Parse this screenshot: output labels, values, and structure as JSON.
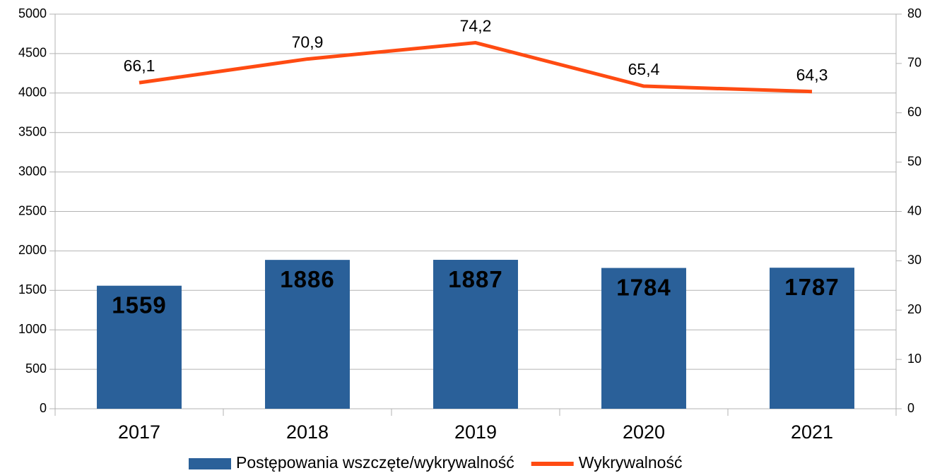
{
  "chart_data": {
    "type": "bar",
    "categories": [
      "2017",
      "2018",
      "2019",
      "2020",
      "2021"
    ],
    "series": [
      {
        "name": "Postępowania wszczęte/wykrywalność",
        "type": "bar",
        "color": "#2a6099",
        "values": [
          1559,
          1886,
          1887,
          1784,
          1787
        ]
      },
      {
        "name": "Wykrywalność",
        "type": "line",
        "axis": "y2",
        "color": "#ff4b12",
        "values": [
          66.1,
          70.9,
          74.2,
          65.4,
          64.3
        ],
        "value_labels": [
          "66,1",
          "70,9",
          "74,2",
          "65,4",
          "64,3"
        ]
      }
    ],
    "ylim": [
      0,
      5000
    ],
    "yticks": [
      0,
      500,
      1000,
      1500,
      2000,
      2500,
      3000,
      3500,
      4000,
      4500,
      5000
    ],
    "y2lim": [
      0,
      80
    ],
    "y2ticks": [
      0,
      10,
      20,
      30,
      40,
      50,
      60,
      70,
      80
    ],
    "grid": true,
    "legend": "bottom"
  }
}
